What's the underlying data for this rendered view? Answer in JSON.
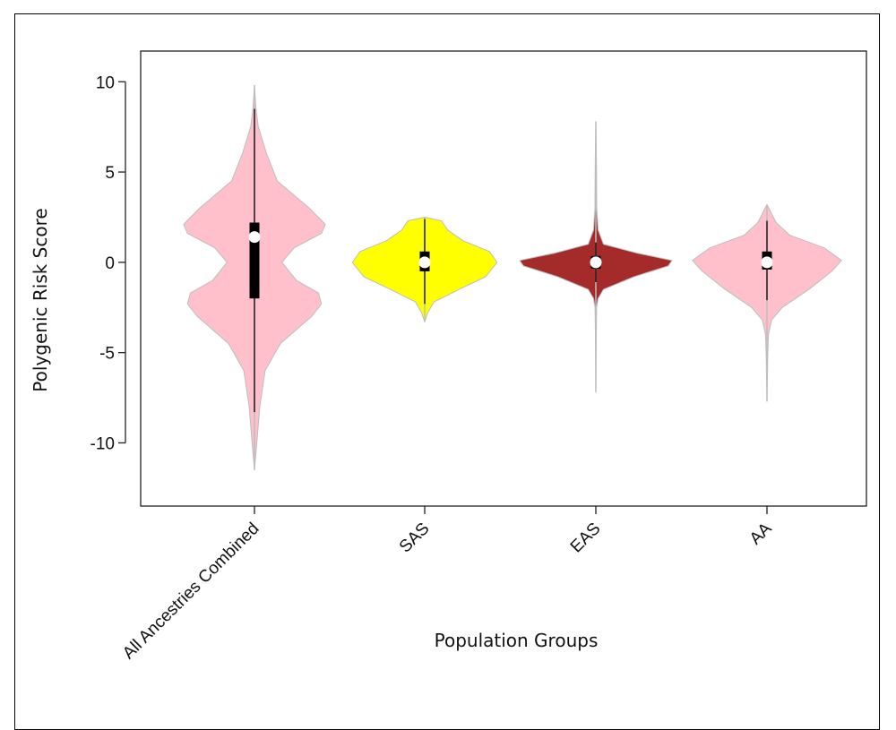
{
  "chart_data": {
    "type": "violin",
    "title": "",
    "xlabel": "Population Groups",
    "ylabel": "Polygenic Risk Score",
    "ylim": [
      -13.5,
      11.7
    ],
    "yticks": [
      10,
      5,
      0,
      -5,
      -10
    ],
    "ytick_labels": [
      "10",
      "5",
      "0",
      "-5",
      "-10"
    ],
    "grid": false,
    "categories": [
      "All Ancestries Combined",
      "SAS",
      "EAS",
      "AA"
    ],
    "series": [
      {
        "category": "All Ancestries Combined",
        "color": "#FFC0CB",
        "min": -11.5,
        "max": 9.8,
        "whisker_low": -8.3,
        "whisker_high": 8.5,
        "q1": -2.0,
        "q3": 2.2,
        "median": 1.4,
        "density": [
          [
            -11.5,
            0
          ],
          [
            -10,
            0.03
          ],
          [
            -8,
            0.07
          ],
          [
            -6,
            0.14
          ],
          [
            -4.5,
            0.34
          ],
          [
            -3,
            0.75
          ],
          [
            -2.3,
            0.88
          ],
          [
            -1.7,
            0.84
          ],
          [
            -1,
            0.55
          ],
          [
            0,
            0.36
          ],
          [
            0.8,
            0.52
          ],
          [
            1.6,
            0.88
          ],
          [
            2.1,
            0.93
          ],
          [
            3,
            0.72
          ],
          [
            4.5,
            0.3
          ],
          [
            6,
            0.16
          ],
          [
            7.5,
            0.05
          ],
          [
            8.5,
            0.02
          ],
          [
            9.8,
            0
          ]
        ]
      },
      {
        "category": "SAS",
        "color": "#FFFF00",
        "min": -3.3,
        "max": 2.5,
        "whisker_low": -2.3,
        "whisker_high": 2.4,
        "q1": -0.5,
        "q3": 0.6,
        "median": 0.0,
        "density": [
          [
            -3.3,
            0
          ],
          [
            -2.8,
            0.04
          ],
          [
            -2.2,
            0.12
          ],
          [
            -1.5,
            0.45
          ],
          [
            -0.8,
            0.8
          ],
          [
            0,
            0.95
          ],
          [
            0.6,
            0.85
          ],
          [
            1.2,
            0.5
          ],
          [
            1.8,
            0.3
          ],
          [
            2.3,
            0.22
          ],
          [
            2.5,
            0
          ]
        ]
      },
      {
        "category": "EAS",
        "color": "#A52A2A",
        "min": -7.2,
        "max": 7.8,
        "whisker_low": -1.1,
        "whisker_high": 1.1,
        "q1": -0.35,
        "q3": 0.35,
        "median": 0.0,
        "density": [
          [
            -7.2,
            0
          ],
          [
            -4,
            0.006
          ],
          [
            -2.5,
            0.01
          ],
          [
            -2,
            0.03
          ],
          [
            -1.5,
            0.1
          ],
          [
            -0.8,
            0.5
          ],
          [
            -0.2,
            0.95
          ],
          [
            0.1,
            1.0
          ],
          [
            0.5,
            0.55
          ],
          [
            1,
            0.1
          ],
          [
            1.8,
            0.03
          ],
          [
            3,
            0.012
          ],
          [
            5.5,
            0.008
          ],
          [
            7.8,
            0
          ]
        ]
      },
      {
        "category": "AA",
        "color": "#FFC0CB",
        "min": -7.7,
        "max": 3.2,
        "whisker_low": -2.1,
        "whisker_high": 2.3,
        "q1": -0.4,
        "q3": 0.6,
        "median": 0.0,
        "density": [
          [
            -7.7,
            0
          ],
          [
            -5,
            0.01
          ],
          [
            -4,
            0.02
          ],
          [
            -3.2,
            0.06
          ],
          [
            -2.5,
            0.2
          ],
          [
            -1.5,
            0.55
          ],
          [
            -0.5,
            0.85
          ],
          [
            0.1,
            0.98
          ],
          [
            0.8,
            0.75
          ],
          [
            1.5,
            0.3
          ],
          [
            2.2,
            0.12
          ],
          [
            3.2,
            0
          ]
        ]
      }
    ]
  }
}
